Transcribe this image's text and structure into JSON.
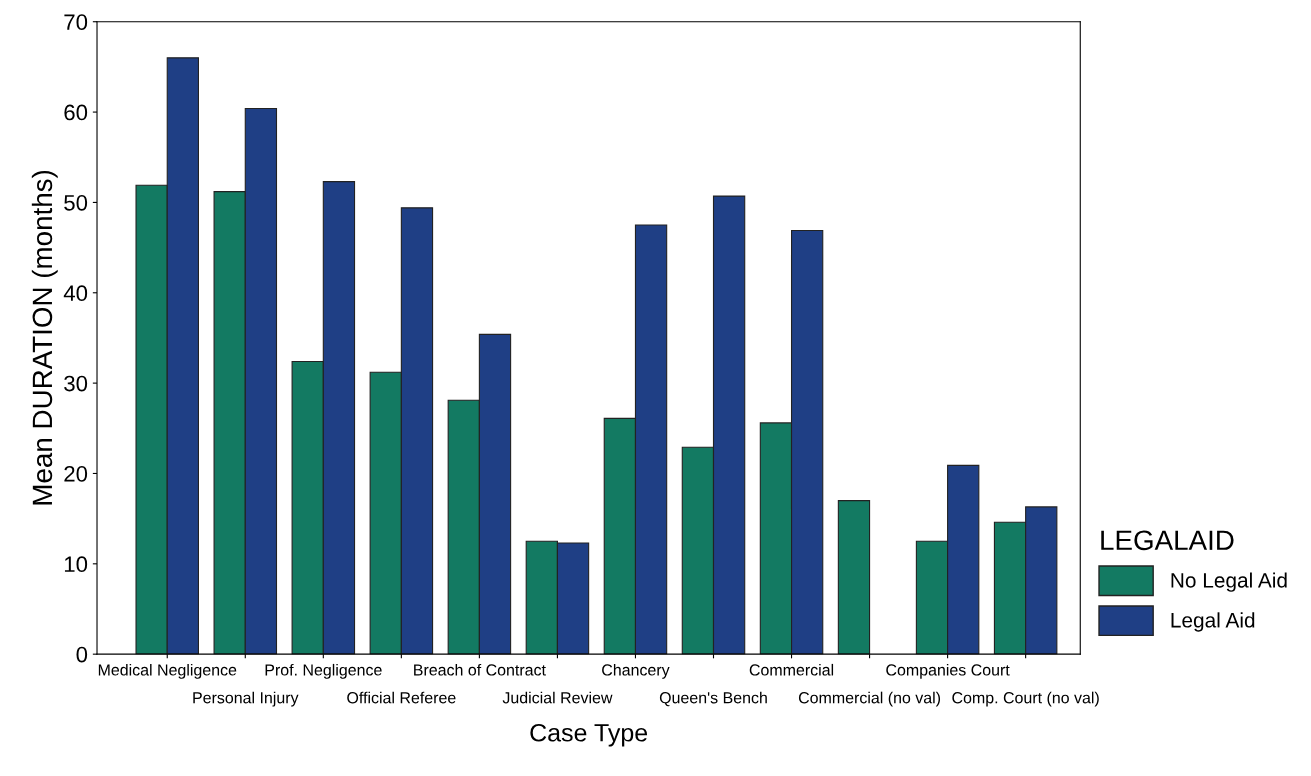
{
  "chart_data": {
    "type": "bar",
    "xlabel": "Case Type",
    "ylabel": "Mean DURATION (months)",
    "legend_title": "LEGALAID",
    "legend": "right",
    "grid": false,
    "categories": [
      "Medical Negligence",
      "Personal Injury",
      "Prof. Negligence",
      "Official Referee",
      "Breach of Contract",
      "Judicial Review",
      "Chancery",
      "Queen's Bench",
      "Commercial",
      "Commercial (no val)",
      "Companies Court",
      "Comp. Court (no val)"
    ],
    "series": [
      {
        "name": "No Legal Aid",
        "color": "#137a62",
        "values": [
          51.9,
          51.2,
          32.4,
          31.2,
          28.1,
          12.5,
          26.1,
          22.9,
          25.6,
          17.0,
          12.5,
          14.6
        ]
      },
      {
        "name": "Legal Aid",
        "color": "#1f3f85",
        "values": [
          66.0,
          60.4,
          52.3,
          49.4,
          35.4,
          12.3,
          47.5,
          50.7,
          46.9,
          null,
          20.9,
          16.3
        ]
      }
    ],
    "ylim": [
      0,
      70
    ],
    "yticks": [
      0,
      10,
      20,
      30,
      40,
      50,
      60,
      70
    ]
  }
}
